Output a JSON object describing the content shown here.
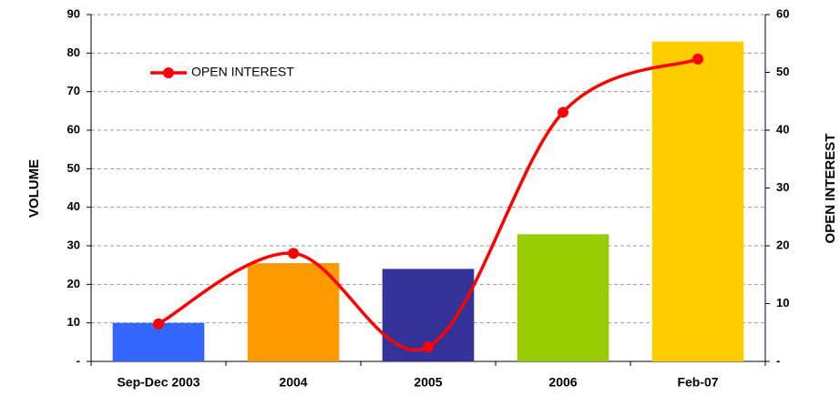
{
  "chart_data": {
    "type": "bar",
    "categories": [
      "Sep-Dec 2003",
      "2004",
      "2005",
      "2006",
      "Feb-07"
    ],
    "series": [
      {
        "values": [
          10,
          25.5,
          24,
          33,
          83
        ],
        "colors": [
          "#3366ff",
          "#ff9900",
          "#333399",
          "#99cc00",
          "#ffcc00"
        ]
      },
      {
        "name": "OPEN INTEREST",
        "type": "line",
        "axis": "y2",
        "color": "#ff0000",
        "values": [
          6.5,
          18.7,
          2.5,
          43.1,
          52.3
        ]
      }
    ],
    "ylabel": "VOLUME",
    "y2label": "OPEN INTEREST",
    "ylim": [
      0,
      90
    ],
    "yticks": [
      {
        "value": 0,
        "label": "-"
      },
      10,
      20,
      30,
      40,
      50,
      60,
      70,
      80,
      90
    ],
    "y2lim": [
      0,
      60
    ],
    "y2ticks": [
      {
        "value": 0,
        "label": "-"
      },
      10,
      20,
      30,
      40,
      50,
      60
    ],
    "grid": true,
    "legend": "upper left"
  }
}
